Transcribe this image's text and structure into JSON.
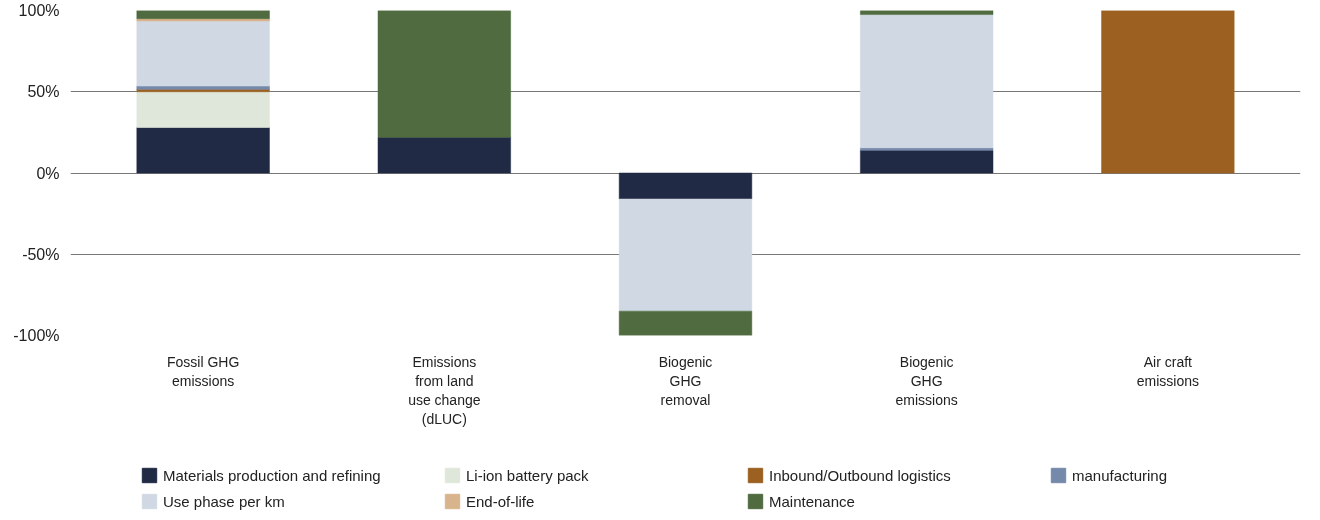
{
  "chart_data": {
    "type": "bar",
    "stacked": true,
    "categories": [
      "Fossil GHG\nemissions",
      "Emissions\nfrom land\nuse change\n(dLUC)",
      "Biogenic\nGHG\nremoval",
      "Biogenic\nGHG\nemissions",
      "Air craft\nemissions"
    ],
    "series": [
      {
        "name": "Materials production and refining",
        "color": "#202a44",
        "values": [
          28,
          22,
          -16,
          14,
          null
        ]
      },
      {
        "name": "Li-ion battery pack",
        "color": "#dfe7da",
        "values": [
          22,
          null,
          null,
          null,
          null
        ]
      },
      {
        "name": "Inbound/Outbound logistics",
        "color": "#9c6121",
        "values": [
          1.5,
          null,
          null,
          null,
          100
        ]
      },
      {
        "name": "manufacturing",
        "color": "#7589ab",
        "values": [
          2,
          null,
          null,
          1.5,
          null
        ]
      },
      {
        "name": "Use phase per km",
        "color": "#d0d9e3",
        "values": [
          40,
          null,
          -69,
          82,
          null
        ]
      },
      {
        "name": "End-of-life",
        "color": "#d8b48c",
        "values": [
          1.5,
          null,
          null,
          null,
          null
        ]
      },
      {
        "name": "Maintenance",
        "color": "#4f6b3f",
        "values": [
          5,
          78,
          -15,
          2.5,
          null
        ]
      }
    ],
    "ylim": [
      -100,
      100
    ],
    "yticks": [
      {
        "value": -100,
        "label": "-100%"
      },
      {
        "value": -50,
        "label": "-50%"
      },
      {
        "value": 0,
        "label": "0%"
      },
      {
        "value": 50,
        "label": "50%"
      },
      {
        "value": 100,
        "label": "100%"
      }
    ],
    "grid": "y",
    "legend": "bottom"
  }
}
